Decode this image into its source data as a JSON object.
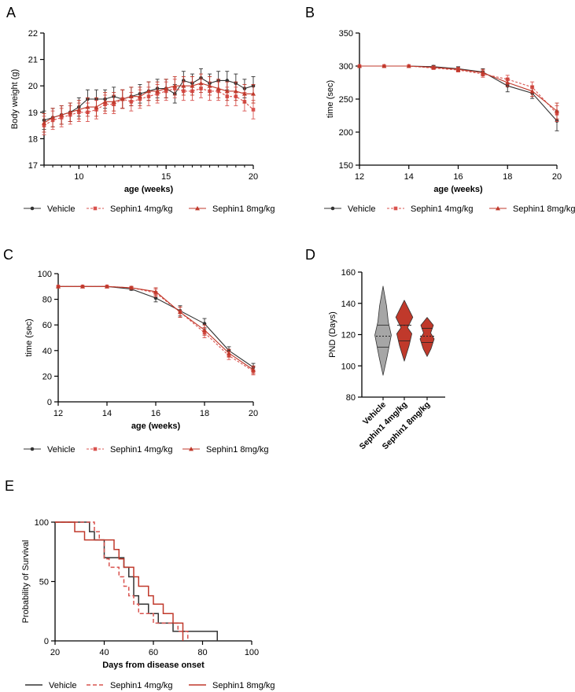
{
  "colors": {
    "vehicle": "#333333",
    "s4": "#d9534f",
    "s8": "#c0392b"
  },
  "chart_data": [
    {
      "panel": "A",
      "type": "line",
      "xlabel": "age (weeks)",
      "ylabel": "Body weight (g)",
      "xlim": [
        8,
        20
      ],
      "ylim": [
        17,
        22
      ],
      "xticks": [
        "10",
        "15",
        "20"
      ],
      "yticks": [
        "17",
        "18",
        "19",
        "20",
        "21",
        "22"
      ],
      "legend_position": "bottom",
      "x": [
        8,
        8.5,
        9,
        9.5,
        10,
        10.5,
        11,
        11.5,
        12,
        12.5,
        13,
        13.5,
        14,
        14.5,
        15,
        15.5,
        16,
        16.5,
        17,
        17.5,
        18,
        18.5,
        19,
        19.5,
        20
      ],
      "series": [
        {
          "name": "Vehicle",
          "values": [
            18.7,
            18.8,
            18.9,
            19.0,
            19.2,
            19.5,
            19.5,
            19.5,
            19.6,
            19.5,
            19.6,
            19.7,
            19.8,
            19.9,
            19.9,
            19.7,
            20.2,
            20.1,
            20.3,
            20.1,
            20.2,
            20.2,
            20.1,
            19.9,
            20.0
          ],
          "err": 0.35
        },
        {
          "name": "Sephin1 4mg/kg",
          "values": [
            18.5,
            18.7,
            18.8,
            18.9,
            19.0,
            19.0,
            19.1,
            19.3,
            19.3,
            19.5,
            19.4,
            19.5,
            19.6,
            19.7,
            19.8,
            19.9,
            19.8,
            19.8,
            19.9,
            19.8,
            19.8,
            19.6,
            19.6,
            19.4,
            19.1
          ],
          "err": 0.35
        },
        {
          "name": "Sephin1 8mg/kg",
          "values": [
            18.6,
            18.8,
            18.9,
            19.0,
            19.1,
            19.2,
            19.2,
            19.4,
            19.4,
            19.5,
            19.6,
            19.6,
            19.8,
            19.8,
            19.9,
            20.0,
            20.0,
            20.0,
            20.1,
            20.0,
            19.9,
            19.8,
            19.8,
            19.7,
            19.7
          ],
          "err": 0.35
        }
      ]
    },
    {
      "panel": "B",
      "type": "line",
      "xlabel": "age (weeks)",
      "ylabel": "time (sec)",
      "xlim": [
        12,
        20
      ],
      "ylim": [
        150,
        350
      ],
      "xticks": [
        "12",
        "14",
        "16",
        "18",
        "20"
      ],
      "yticks": [
        "150",
        "200",
        "250",
        "300",
        "350"
      ],
      "legend_position": "bottom",
      "x": [
        12,
        13,
        14,
        15,
        16,
        17,
        18,
        19,
        20
      ],
      "series": [
        {
          "name": "Vehicle",
          "values": [
            300,
            300,
            300,
            299,
            296,
            291,
            270,
            259,
            217
          ],
          "err": [
            0,
            0,
            0,
            2,
            3,
            5,
            9,
            8,
            15
          ]
        },
        {
          "name": "Sephin1 4mg/kg",
          "values": [
            300,
            300,
            300,
            297,
            294,
            288,
            280,
            268,
            228
          ],
          "err": [
            0,
            0,
            0,
            2,
            3,
            5,
            6,
            8,
            12
          ]
        },
        {
          "name": "Sephin1 8mg/kg",
          "values": [
            300,
            300,
            300,
            298,
            295,
            290,
            275,
            262,
            232
          ],
          "err": [
            0,
            0,
            0,
            2,
            3,
            5,
            6,
            8,
            12
          ]
        }
      ]
    },
    {
      "panel": "C",
      "type": "line",
      "xlabel": "age (weeks)",
      "ylabel": "time (sec)",
      "xlim": [
        12,
        20
      ],
      "ylim": [
        0,
        100
      ],
      "xticks": [
        "12",
        "14",
        "16",
        "18",
        "20"
      ],
      "yticks": [
        "0",
        "20",
        "40",
        "60",
        "80",
        "100"
      ],
      "legend_position": "bottom",
      "x": [
        12,
        13,
        14,
        15,
        16,
        17,
        18,
        19,
        20
      ],
      "series": [
        {
          "name": "Vehicle",
          "values": [
            90,
            90,
            90,
            88,
            81,
            71,
            61,
            40,
            27
          ],
          "err": [
            0,
            0,
            0,
            1,
            3,
            4,
            4,
            3,
            3
          ]
        },
        {
          "name": "Sephin1 4mg/kg",
          "values": [
            90,
            90,
            90,
            89,
            85,
            70,
            54,
            36,
            24
          ],
          "err": [
            0,
            0,
            0,
            1,
            3,
            4,
            4,
            3,
            3
          ]
        },
        {
          "name": "Sephin1 8mg/kg",
          "values": [
            90,
            90,
            90,
            89,
            86,
            70,
            56,
            38,
            25
          ],
          "err": [
            0,
            0,
            0,
            1,
            3,
            4,
            4,
            3,
            3
          ]
        }
      ]
    },
    {
      "panel": "D",
      "type": "violin",
      "ylabel": "PND (Days)",
      "ylim": [
        80,
        160
      ],
      "yticks": [
        "80",
        "100",
        "120",
        "140",
        "160"
      ],
      "categories": [
        "Vehicle",
        "Sephin1 4mg/kg",
        "Sephin1 8mg/kg"
      ],
      "median": [
        119,
        126,
        119
      ],
      "quartiles": [
        [
          112,
          126
        ],
        [
          116,
          126
        ],
        [
          115,
          124
        ]
      ],
      "range": [
        [
          94,
          151
        ],
        [
          103,
          142
        ],
        [
          106,
          131
        ]
      ]
    },
    {
      "panel": "E",
      "type": "line",
      "xlabel": "Days from disease onset",
      "ylabel": "Probability of Survival",
      "xlim": [
        20,
        100
      ],
      "ylim": [
        0,
        100
      ],
      "xticks": [
        "20",
        "40",
        "60",
        "80",
        "100"
      ],
      "yticks": [
        "0",
        "50",
        "100"
      ],
      "legend_position": "bottom",
      "series": [
        {
          "name": "Vehicle",
          "x": [
            20,
            34,
            36,
            40,
            48,
            50,
            52,
            54,
            58,
            62,
            68,
            72,
            86
          ],
          "y": [
            100,
            92,
            85,
            70,
            62,
            54,
            38,
            31,
            23,
            15,
            8,
            8,
            0
          ]
        },
        {
          "name": "Sephin1 4mg/kg",
          "x": [
            20,
            36,
            38,
            40,
            42,
            46,
            48,
            50,
            52,
            54,
            60,
            64,
            70,
            74
          ],
          "y": [
            100,
            92,
            85,
            69,
            62,
            54,
            46,
            38,
            31,
            23,
            15,
            15,
            8,
            0
          ]
        },
        {
          "name": "Sephin1 8mg/kg",
          "x": [
            20,
            28,
            32,
            40,
            44,
            46,
            48,
            52,
            54,
            58,
            60,
            64,
            68,
            72
          ],
          "y": [
            100,
            92,
            85,
            85,
            77,
            69,
            62,
            54,
            46,
            38,
            31,
            23,
            15,
            0
          ]
        }
      ]
    }
  ]
}
